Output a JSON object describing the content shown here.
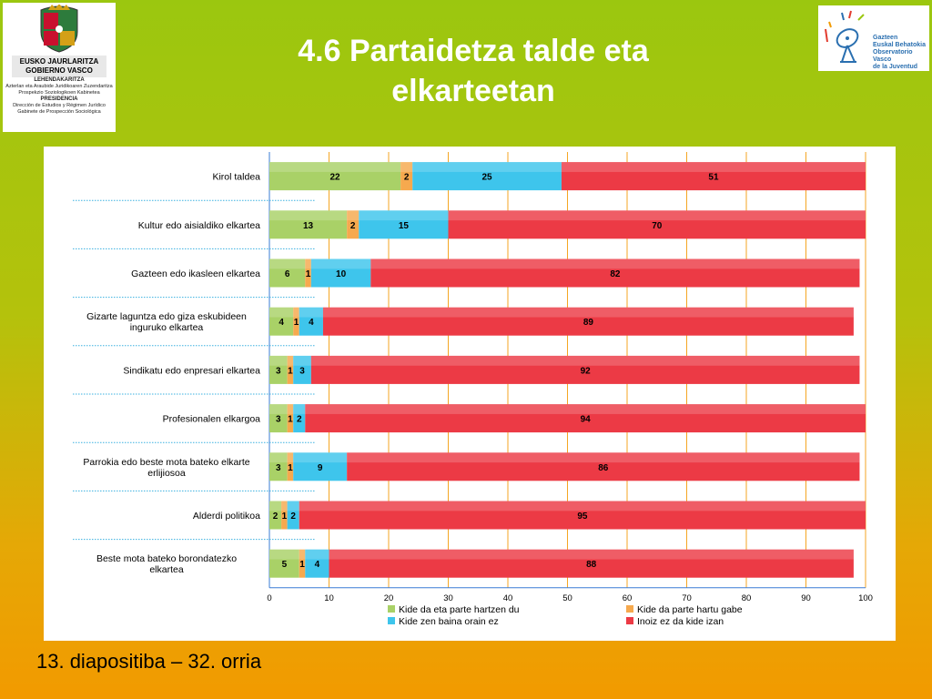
{
  "header": {
    "title_line1": "4.6 Partaidetza talde eta",
    "title_line2": "elkarteetan"
  },
  "logo_left": {
    "line1": "EUSKO JAURLARITZA",
    "line2": "GOBIERNO VASCO",
    "dept1": "LEHENDAKARITZA",
    "dept1_sub1": "Azterlan eta Araubide Juridikoaren Zuzendaritza",
    "dept1_sub2": "Prospekzio Soziologikoen Kabinetea",
    "dept2": "PRESIDENCIA",
    "dept2_sub1": "Dirección de Estudios y Régimen Jurídico",
    "dept2_sub2": "Gabinete de Prospección Sociológica",
    "icon": "basque-government-seal-icon"
  },
  "logo_right": {
    "line1": "Gazteen",
    "line2": "Euskal Behatokia",
    "line3": "Observatorio Vasco",
    "line4": "de la Juventud",
    "icon": "satellite-dish-icon"
  },
  "footer": {
    "text": "13. diapositiba – 32. orria"
  },
  "chart_data": {
    "type": "bar",
    "orientation": "horizontal",
    "stacked": true,
    "categories": [
      "Kirol taldea",
      "Kultur edo aisialdiko elkartea",
      "Gazteen edo ikasleen elkartea",
      "Gizarte laguntza edo giza eskubideen inguruko elkartea",
      "Sindikatu edo enpresari elkartea",
      "Profesionalen elkargoa",
      "Parrokia edo beste mota bateko elkarte erlijiosoa",
      "Alderdi politikoa",
      "Beste mota bateko borondatezko elkartea"
    ],
    "category_lines": [
      [
        "Kirol taldea"
      ],
      [
        "Kultur edo aisialdiko elkartea"
      ],
      [
        "Gazteen edo ikasleen elkartea"
      ],
      [
        "Gizarte laguntza edo giza eskubideen",
        "inguruko elkartea"
      ],
      [
        "Sindikatu edo enpresari elkartea"
      ],
      [
        "Profesionalen elkargoa"
      ],
      [
        "Parrokia edo beste mota bateko elkarte",
        "erlijiosoa"
      ],
      [
        "Alderdi politikoa"
      ],
      [
        "Beste mota bateko borondatezko",
        "elkartea"
      ]
    ],
    "series": [
      {
        "name": "Kide da eta parte hartzen du",
        "color": "#a9d167",
        "values": [
          22,
          13,
          6,
          4,
          3,
          3,
          3,
          2,
          5
        ]
      },
      {
        "name": "Kide da parte hartu gabe",
        "color": "#f6a94e",
        "values": [
          2,
          2,
          1,
          1,
          1,
          1,
          1,
          1,
          1
        ]
      },
      {
        "name": "Kide zen baina orain ez",
        "color": "#3ec5ec",
        "values": [
          25,
          15,
          10,
          4,
          3,
          2,
          9,
          2,
          4
        ]
      },
      {
        "name": "Inoiz ez da kide izan",
        "color": "#ec3a45",
        "values": [
          51,
          70,
          82,
          89,
          92,
          94,
          86,
          95,
          88
        ]
      }
    ],
    "xlim": [
      0,
      100
    ],
    "xticks": [
      0,
      10,
      20,
      30,
      40,
      50,
      60,
      70,
      80,
      90,
      100
    ],
    "grid": true,
    "gridline_color": "#f5a623",
    "legend_position": "bottom"
  }
}
